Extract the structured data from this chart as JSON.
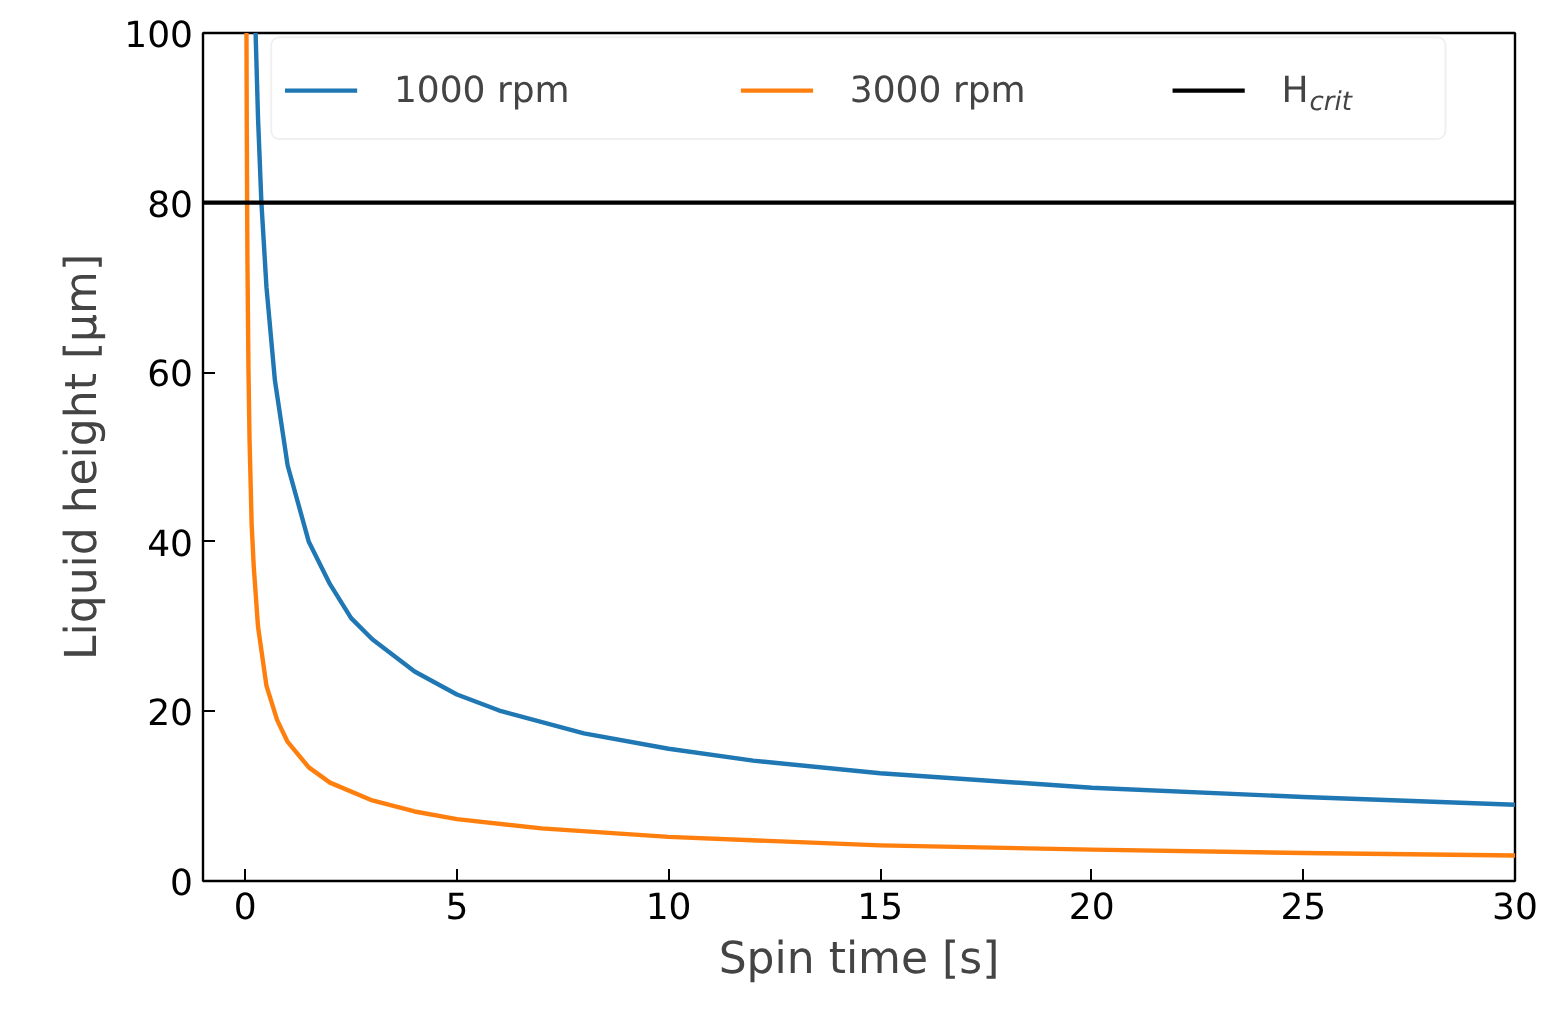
{
  "chart_data": {
    "type": "line",
    "xlabel": "Spin time [s]",
    "ylabel": "Liquid height [μm]",
    "xlim": [
      -1,
      30
    ],
    "ylim": [
      0,
      100
    ],
    "xticks": [
      0,
      5,
      10,
      15,
      20,
      25,
      30
    ],
    "yticks": [
      0,
      20,
      40,
      60,
      80,
      100
    ],
    "grid": false,
    "legend": "top",
    "marker": "none",
    "line_style": "solid",
    "series": [
      {
        "name": "1000 rpm",
        "color": "#1f77b4",
        "x": [
          0.243,
          0.3,
          0.38,
          0.5,
          0.7,
          1,
          1.5,
          2,
          2.5,
          3,
          4,
          5,
          6,
          8,
          10,
          12,
          15,
          20,
          25,
          30
        ],
        "values": [
          100,
          90,
          80,
          70,
          59,
          49,
          40,
          35,
          31,
          28.5,
          24.7,
          22,
          20.1,
          17.4,
          15.6,
          14.2,
          12.7,
          11,
          9.9,
          9
        ]
      },
      {
        "name": "3000 rpm",
        "color": "#ff7f0e",
        "x": [
          0.027,
          0.035,
          0.05,
          0.075,
          0.1,
          0.15,
          0.2,
          0.3,
          0.5,
          0.75,
          1,
          1.5,
          2,
          3,
          4,
          5,
          7,
          10,
          15,
          20,
          25,
          30
        ],
        "values": [
          100,
          88,
          73,
          60,
          52,
          42,
          37,
          30,
          23,
          19,
          16.4,
          13.4,
          11.6,
          9.5,
          8.2,
          7.3,
          6.2,
          5.2,
          4.2,
          3.7,
          3.3,
          3
        ]
      }
    ],
    "ref_lines": [
      {
        "axis": "y",
        "value": 80,
        "label": "H$_{crit}$",
        "color": "#000000",
        "line_style": "solid"
      }
    ]
  }
}
